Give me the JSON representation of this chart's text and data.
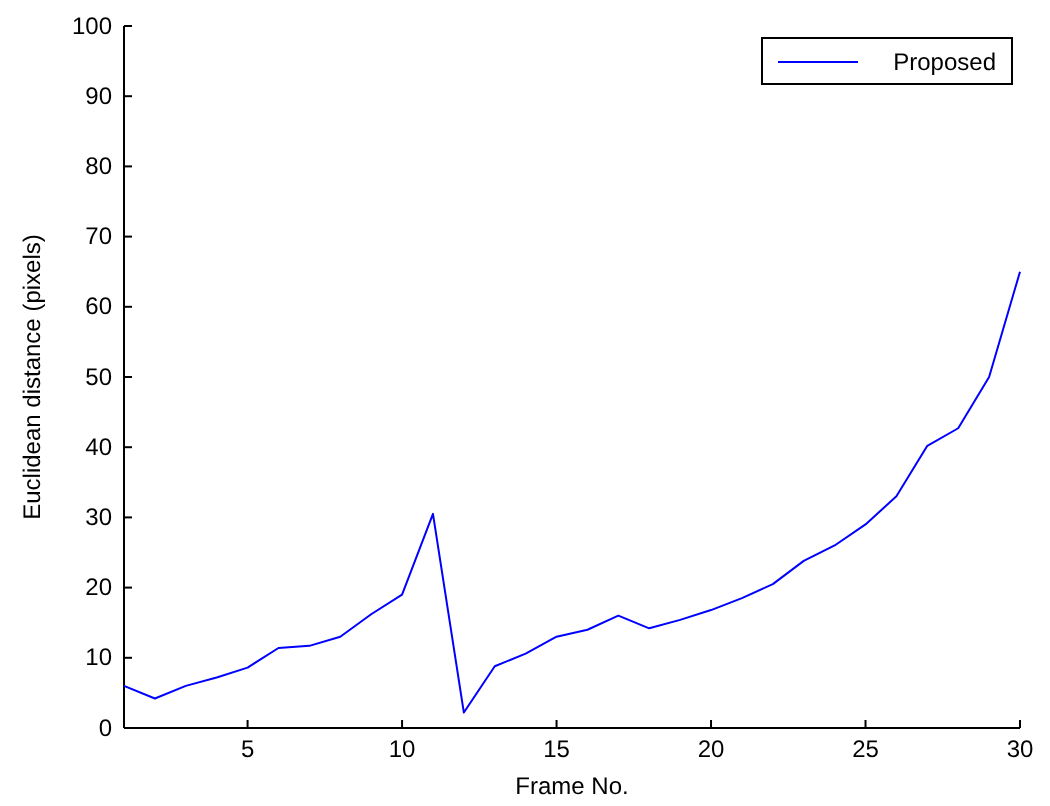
{
  "chart_data": {
    "type": "line",
    "xlabel": "Frame No.",
    "ylabel": "Euclidean distance (pixels)",
    "x": [
      1,
      2,
      3,
      4,
      5,
      6,
      7,
      8,
      9,
      10,
      11,
      12,
      13,
      14,
      15,
      16,
      17,
      18,
      19,
      20,
      21,
      22,
      23,
      24,
      25,
      26,
      27,
      28,
      29,
      30
    ],
    "series": [
      {
        "name": "Proposed",
        "color": "#0000ff",
        "values": [
          6,
          4.2,
          6,
          7.2,
          8.6,
          11.4,
          11.7,
          13,
          16.2,
          19,
          30.5,
          2.2,
          8.8,
          10.6,
          13,
          14,
          16,
          14.2,
          15.4,
          16.8,
          18.5,
          20.5,
          23.8,
          26,
          29,
          33,
          40.2,
          42.7,
          50,
          65
        ]
      }
    ],
    "xlim": [
      1,
      30
    ],
    "xticks": [
      5,
      10,
      15,
      20,
      25,
      30
    ],
    "ylim": [
      0,
      100
    ],
    "yticks": [
      0,
      10,
      20,
      30,
      40,
      50,
      60,
      70,
      80,
      90,
      100
    ],
    "legend": "top right",
    "grid": false,
    "marker": "none",
    "line_style": "solid"
  }
}
